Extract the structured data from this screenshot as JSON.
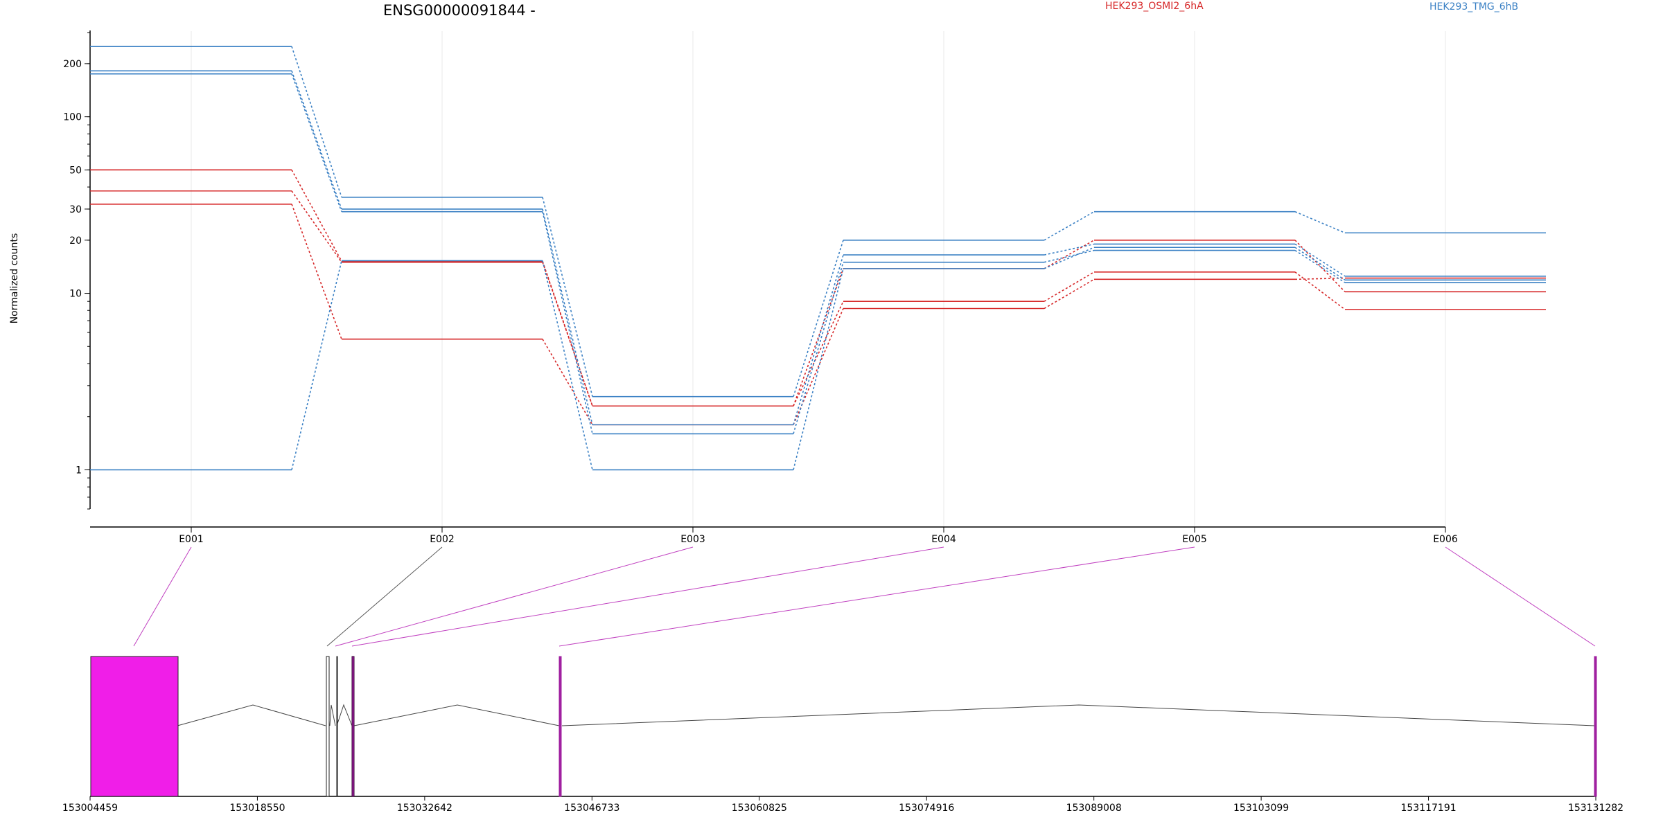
{
  "chart_data": {
    "type": "line",
    "title": "ENSG00000091844 -",
    "ylabel": "Normalized counts",
    "xlabel": "",
    "y_scale": "log",
    "ylim": [
      0.6,
      300
    ],
    "y_ticks": [
      1,
      10,
      20,
      30,
      50,
      100,
      200
    ],
    "grid": "vertical lines at exon bins",
    "legend_placement": "top-right",
    "categories": [
      "E001",
      "E002",
      "E003",
      "E004",
      "E005",
      "E006"
    ],
    "groups": [
      {
        "label": "HEK293_OSMI2_6hA",
        "color": "#d62728"
      },
      {
        "label": "HEK293_TMG_6hB",
        "color": "#3a80c4"
      }
    ],
    "series": [
      {
        "group": 0,
        "values": [
          50,
          15.2,
          2.3,
          13.8,
          20,
          10.2
        ]
      },
      {
        "group": 0,
        "values": [
          38,
          15.0,
          2.3,
          9.0,
          13.2,
          8.1
        ]
      },
      {
        "group": 0,
        "values": [
          32,
          5.5,
          1.8,
          8.2,
          12,
          12.2
        ]
      },
      {
        "group": 1,
        "values": [
          250,
          35,
          2.6,
          20,
          29,
          22
        ]
      },
      {
        "group": 1,
        "values": [
          182,
          30,
          1.8,
          16.5,
          19,
          12.5
        ]
      },
      {
        "group": 1,
        "values": [
          175,
          29,
          1.6,
          15,
          17.5,
          11.5
        ]
      },
      {
        "group": 1,
        "values": [
          1.0,
          15.3,
          1.0,
          13.8,
          18.2,
          11.9
        ]
      }
    ],
    "gene_model": {
      "x_ticks": [
        "153004459",
        "153018550",
        "153032642",
        "153046733",
        "153060825",
        "153074916",
        "153089008",
        "153103099",
        "153117191",
        "153131282"
      ],
      "exon_color": "#f01ee8",
      "highlight_color": "#a020a0"
    }
  }
}
